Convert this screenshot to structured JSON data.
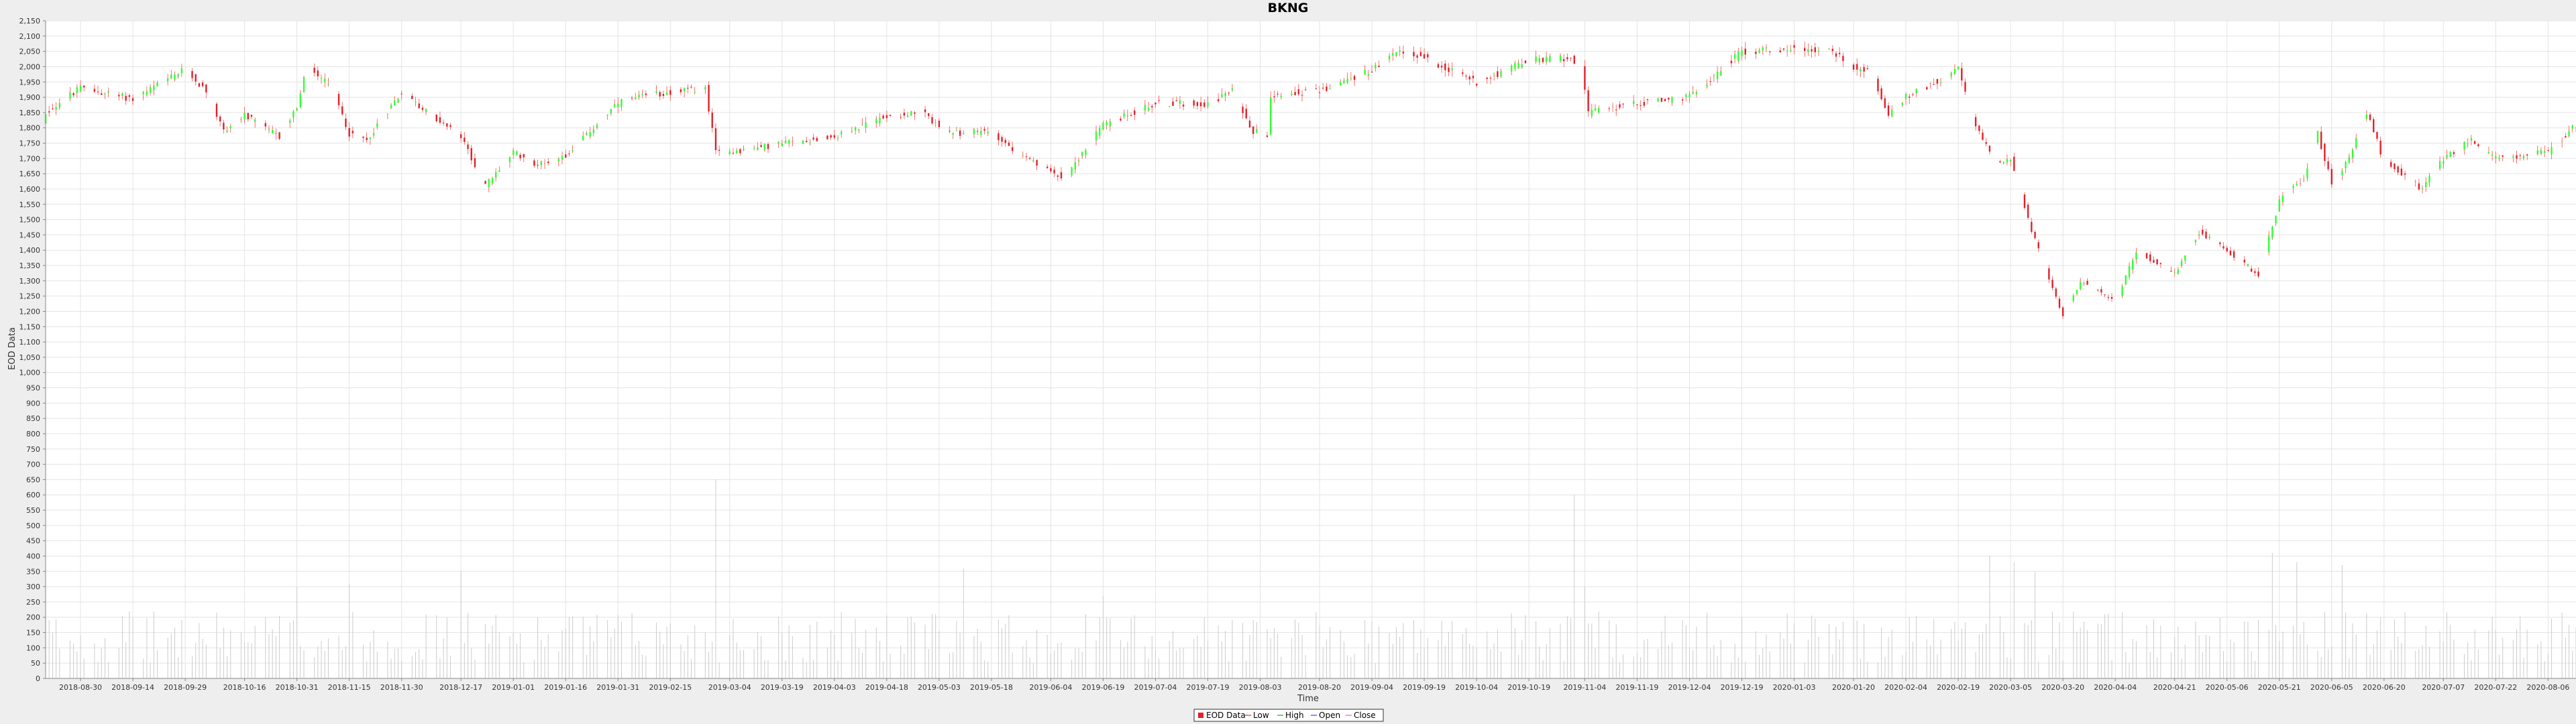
{
  "chart_data": {
    "type": "candlestick",
    "title": "BKNG",
    "xlabel": "Time",
    "ylabel": "EOD Data",
    "ylim": [
      0,
      2150
    ],
    "y_ticks": [
      0,
      50,
      100,
      150,
      200,
      250,
      300,
      350,
      400,
      450,
      500,
      550,
      600,
      650,
      700,
      750,
      800,
      850,
      900,
      950,
      1000,
      1050,
      1100,
      1150,
      1200,
      1250,
      1300,
      1350,
      1400,
      1450,
      1500,
      1550,
      1600,
      1650,
      1700,
      1750,
      1800,
      1850,
      1900,
      1950,
      2000,
      2050,
      2100,
      2150
    ],
    "x_start": "2018-08-20",
    "x_end": "2020-08-14",
    "x_ticks": [
      "2018-08-30",
      "2018-09-14",
      "2018-09-29",
      "2018-10-16",
      "2018-10-31",
      "2018-11-15",
      "2018-11-30",
      "2018-12-17",
      "2019-01-01",
      "2019-01-16",
      "2019-01-31",
      "2019-02-15",
      "2019-03-04",
      "2019-03-19",
      "2019-04-03",
      "2019-04-18",
      "2019-05-03",
      "2019-05-18",
      "2019-06-04",
      "2019-06-19",
      "2019-07-04",
      "2019-07-19",
      "2019-08-03",
      "2019-08-20",
      "2019-09-04",
      "2019-09-19",
      "2019-10-04",
      "2019-10-19",
      "2019-11-04",
      "2019-11-19",
      "2019-12-04",
      "2019-12-19",
      "2020-01-03",
      "2020-01-20",
      "2020-02-04",
      "2020-02-19",
      "2020-03-05",
      "2020-03-20",
      "2020-04-04",
      "2020-04-21",
      "2020-05-06",
      "2020-05-21",
      "2020-06-05",
      "2020-06-20",
      "2020-07-07",
      "2020-07-22",
      "2020-08-06"
    ],
    "price_anchors": [
      [
        "2018-08-20",
        1850
      ],
      [
        "2018-08-30",
        1930
      ],
      [
        "2018-09-14",
        1895
      ],
      [
        "2018-09-29",
        1990
      ],
      [
        "2018-10-05",
        1920
      ],
      [
        "2018-10-10",
        1790
      ],
      [
        "2018-10-16",
        1840
      ],
      [
        "2018-10-26",
        1770
      ],
      [
        "2018-10-31",
        1870
      ],
      [
        "2018-11-03",
        2000
      ],
      [
        "2018-11-10",
        1930
      ],
      [
        "2018-11-15",
        1780
      ],
      [
        "2018-11-20",
        1760
      ],
      [
        "2018-11-30",
        1920
      ],
      [
        "2018-12-05",
        1870
      ],
      [
        "2018-12-17",
        1770
      ],
      [
        "2018-12-24",
        1610
      ],
      [
        "2019-01-01",
        1720
      ],
      [
        "2019-01-08",
        1680
      ],
      [
        "2019-01-16",
        1710
      ],
      [
        "2019-01-31",
        1880
      ],
      [
        "2019-02-10",
        1910
      ],
      [
        "2019-02-25",
        1930
      ],
      [
        "2019-02-28",
        1720
      ],
      [
        "2019-03-10",
        1730
      ],
      [
        "2019-03-19",
        1750
      ],
      [
        "2019-04-03",
        1770
      ],
      [
        "2019-04-18",
        1840
      ],
      [
        "2019-04-28",
        1850
      ],
      [
        "2019-05-06",
        1780
      ],
      [
        "2019-05-18",
        1790
      ],
      [
        "2019-05-25",
        1720
      ],
      [
        "2019-06-03",
        1660
      ],
      [
        "2019-06-08",
        1640
      ],
      [
        "2019-06-19",
        1810
      ],
      [
        "2019-07-04",
        1880
      ],
      [
        "2019-07-19",
        1880
      ],
      [
        "2019-07-26",
        1920
      ],
      [
        "2019-08-01",
        1790
      ],
      [
        "2019-08-05",
        1780
      ],
      [
        "2019-08-06",
        1910
      ],
      [
        "2019-08-20",
        1920
      ],
      [
        "2019-09-04",
        1990
      ],
      [
        "2019-09-12",
        2050
      ],
      [
        "2019-09-19",
        2030
      ],
      [
        "2019-10-04",
        1950
      ],
      [
        "2019-10-19",
        2020
      ],
      [
        "2019-10-30",
        2030
      ],
      [
        "2019-11-03",
        2010
      ],
      [
        "2019-11-05",
        1850
      ],
      [
        "2019-11-19",
        1880
      ],
      [
        "2019-12-04",
        1900
      ],
      [
        "2019-12-19",
        2050
      ],
      [
        "2020-01-03",
        2060
      ],
      [
        "2020-01-14",
        2050
      ],
      [
        "2020-01-20",
        2000
      ],
      [
        "2020-01-25",
        1980
      ],
      [
        "2020-01-30",
        1840
      ],
      [
        "2020-02-04",
        1900
      ],
      [
        "2020-02-19",
        1990
      ],
      [
        "2020-02-24",
        1800
      ],
      [
        "2020-03-01",
        1690
      ],
      [
        "2020-03-05",
        1700
      ],
      [
        "2020-03-10",
        1500
      ],
      [
        "2020-03-16",
        1300
      ],
      [
        "2020-03-20",
        1190
      ],
      [
        "2020-03-25",
        1300
      ],
      [
        "2020-04-04",
        1230
      ],
      [
        "2020-04-10",
        1400
      ],
      [
        "2020-04-21",
        1320
      ],
      [
        "2020-04-28",
        1460
      ],
      [
        "2020-05-06",
        1400
      ],
      [
        "2020-05-15",
        1320
      ],
      [
        "2020-05-21",
        1560
      ],
      [
        "2020-05-28",
        1640
      ],
      [
        "2020-06-01",
        1780
      ],
      [
        "2020-06-05",
        1620
      ],
      [
        "2020-06-10",
        1700
      ],
      [
        "2020-06-15",
        1850
      ],
      [
        "2020-06-20",
        1690
      ],
      [
        "2020-07-01",
        1600
      ],
      [
        "2020-07-07",
        1700
      ],
      [
        "2020-07-15",
        1760
      ],
      [
        "2020-07-22",
        1700
      ],
      [
        "2020-08-06",
        1720
      ],
      [
        "2020-08-14",
        1810
      ]
    ],
    "volume_anchors": [
      [
        "2019-02-28",
        650
      ],
      [
        "2019-03-02",
        410
      ],
      [
        "2019-05-10",
        360
      ],
      [
        "2019-11-01",
        600
      ],
      [
        "2019-11-04",
        300
      ],
      [
        "2020-02-28",
        400
      ],
      [
        "2020-03-06",
        380
      ],
      [
        "2020-03-12",
        350
      ],
      [
        "2020-05-19",
        410
      ],
      [
        "2020-05-26",
        380
      ],
      [
        "2020-06-08",
        370
      ],
      [
        "2018-10-31",
        300
      ],
      [
        "2018-11-15",
        310
      ],
      [
        "2018-12-17",
        350
      ],
      [
        "2019-06-19",
        270
      ]
    ],
    "volume_range": [
      50,
      220
    ],
    "grid": true,
    "up_color": "#33ff33",
    "down_color": "#e0202a",
    "wick_color": "#ff4a4a",
    "volume_color": "#cccccc",
    "legend": {
      "placement": "bottom-center",
      "items": [
        {
          "label": "EOD Data",
          "color": "#e0202a"
        },
        {
          "label": "Low",
          "color": "#ff4a4a"
        },
        {
          "label": "High",
          "color": "#33cc33"
        },
        {
          "label": "Open",
          "color": "#6666ff"
        },
        {
          "label": "Close",
          "color": "#ff66ff"
        }
      ]
    }
  }
}
